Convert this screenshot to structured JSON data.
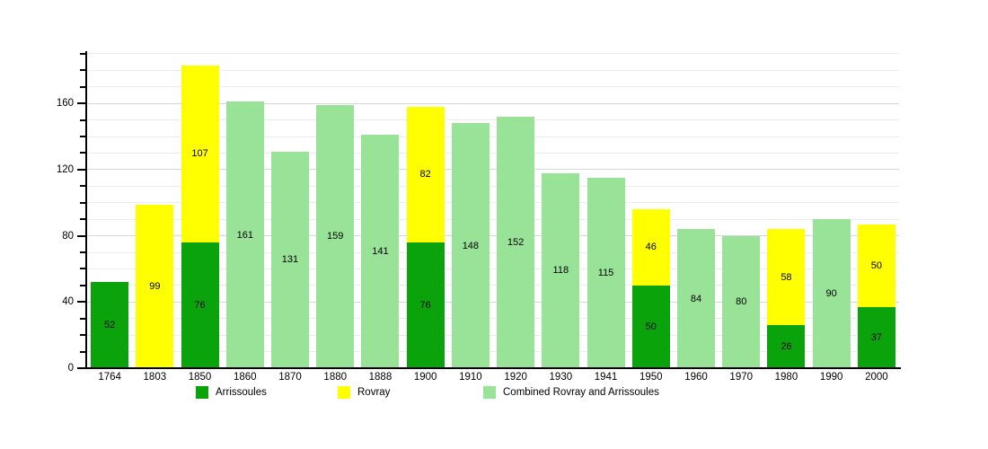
{
  "chart_data": {
    "type": "bar",
    "stacked": true,
    "title": "",
    "xlabel": "",
    "ylabel": "",
    "categories": [
      "1764",
      "1803",
      "1850",
      "1860",
      "1870",
      "1880",
      "1888",
      "1900",
      "1910",
      "1920",
      "1930",
      "1941",
      "1950",
      "1960",
      "1970",
      "1980",
      "1990",
      "2000"
    ],
    "series": [
      {
        "name": "Arrissoules",
        "color": "#0ba30b",
        "values": [
          52,
          0,
          76,
          0,
          0,
          0,
          0,
          76,
          0,
          0,
          0,
          0,
          50,
          0,
          0,
          26,
          0,
          37
        ]
      },
      {
        "name": "Rovray",
        "color": "#ffff00",
        "values": [
          0,
          99,
          107,
          0,
          0,
          0,
          0,
          82,
          0,
          0,
          0,
          0,
          46,
          0,
          0,
          58,
          0,
          50
        ]
      },
      {
        "name": "Combined Rovray and Arrissoules",
        "color": "#99e399",
        "values": [
          0,
          0,
          0,
          161,
          131,
          159,
          141,
          0,
          148,
          152,
          118,
          115,
          0,
          84,
          80,
          0,
          90,
          0
        ]
      }
    ],
    "bar_value_labels_shown": true,
    "ylim": [
      0,
      191
    ],
    "yticks": [
      0,
      40,
      80,
      120,
      160
    ],
    "minor_tick_step": 10,
    "grid": "horizontal",
    "legend_position": "bottom",
    "colors": {
      "axis": "#000000",
      "gridline_minor": "#ececec",
      "gridline_major": "#d6d6d6",
      "background": "#ffffff",
      "label_text": "#000000"
    }
  }
}
